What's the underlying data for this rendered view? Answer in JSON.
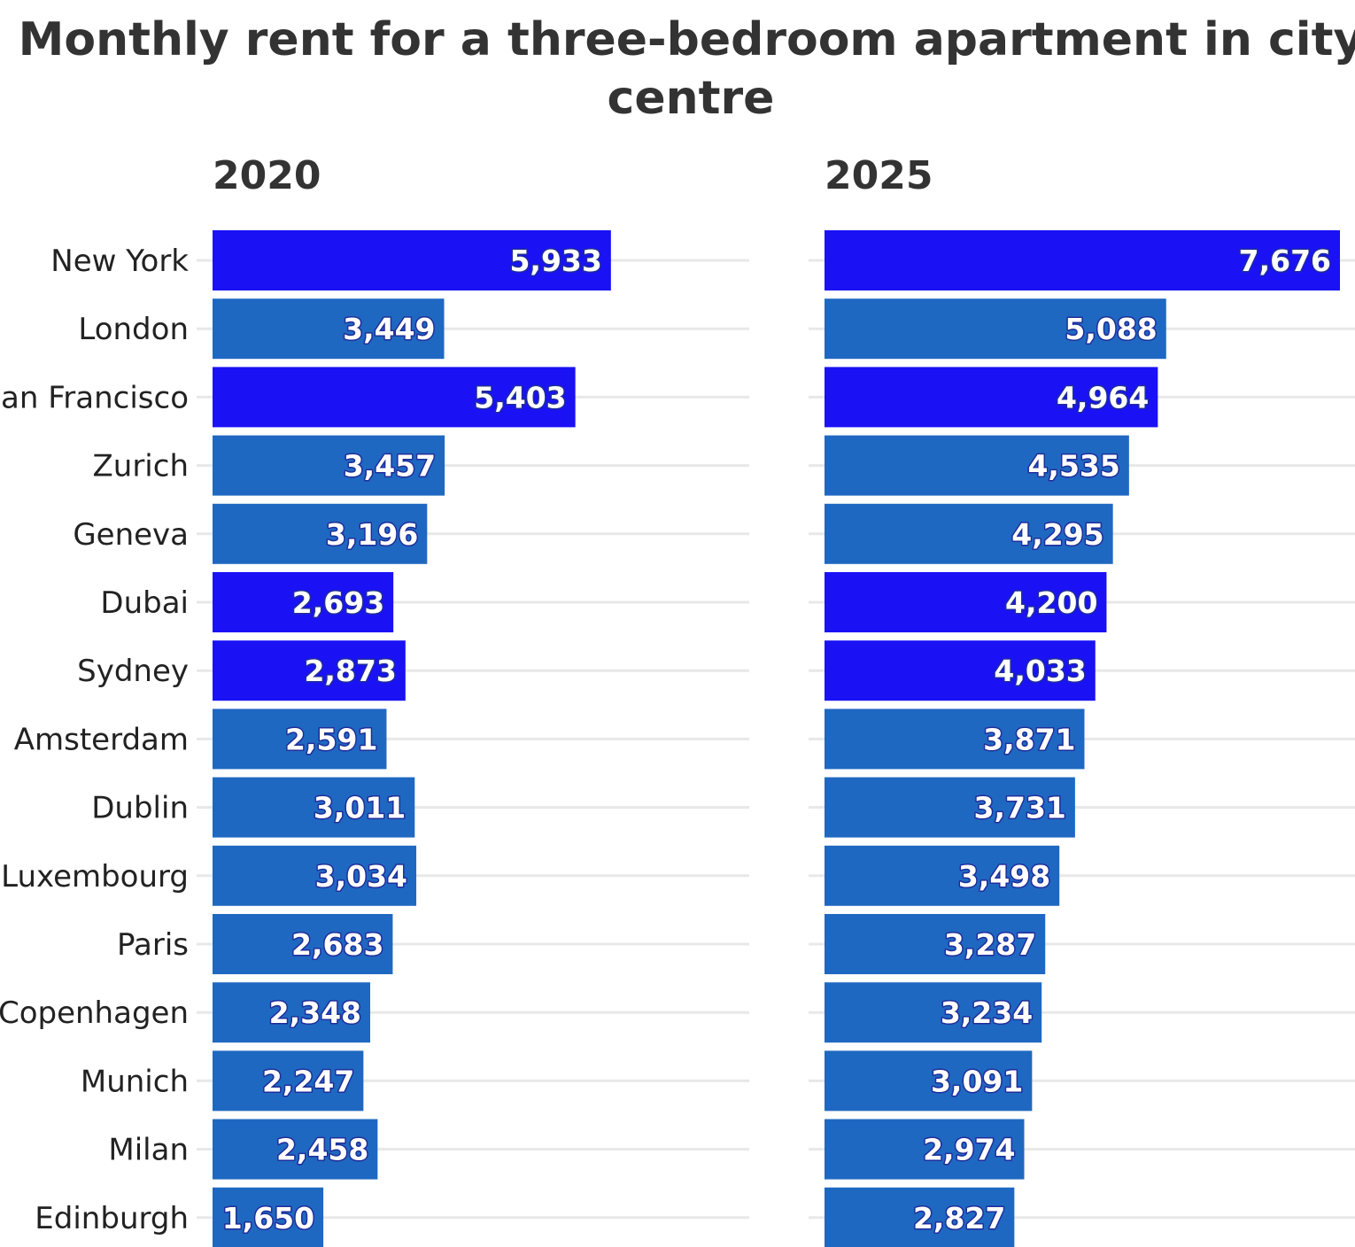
{
  "chart_data": {
    "type": "bar",
    "title": "Monthly rent for a three-bedroom apartment in city centre",
    "orientation": "horizontal",
    "categories": [
      "New York",
      "London",
      "San Francisco",
      "Zurich",
      "Geneva",
      "Dubai",
      "Sydney",
      "Amsterdam",
      "Dublin",
      "Luxembourg",
      "Paris",
      "Copenhagen",
      "Munich",
      "Milan",
      "Edinburgh"
    ],
    "highlighted_categories": [
      "New York",
      "San Francisco",
      "Dubai",
      "Sydney"
    ],
    "colors": {
      "highlight": "#1a12f5",
      "default": "#1f68c1"
    },
    "panels": [
      {
        "title": "2020",
        "values": [
          5933,
          3449,
          5403,
          3457,
          3196,
          2693,
          2873,
          2591,
          3011,
          3034,
          2683,
          2348,
          2247,
          2458,
          1650
        ],
        "labels": [
          "5,933",
          "3,449",
          "5,403",
          "3,457",
          "3,196",
          "2,693",
          "2,873",
          "2,591",
          "3,011",
          "3,034",
          "2,683",
          "2,348",
          "2,247",
          "2,458",
          "1,650"
        ]
      },
      {
        "title": "2025",
        "values": [
          7676,
          5088,
          4964,
          4535,
          4295,
          4200,
          4033,
          3871,
          3731,
          3498,
          3287,
          3234,
          3091,
          2974,
          2827
        ],
        "labels": [
          "7,676",
          "5,088",
          "4,964",
          "4,535",
          "4,295",
          "4,200",
          "4,033",
          "3,871",
          "3,731",
          "3,498",
          "3,287",
          "3,234",
          "3,091",
          "2,974",
          "2,827"
        ]
      }
    ],
    "xlim": [
      0,
      7676
    ],
    "grid": true,
    "legend": "none"
  }
}
